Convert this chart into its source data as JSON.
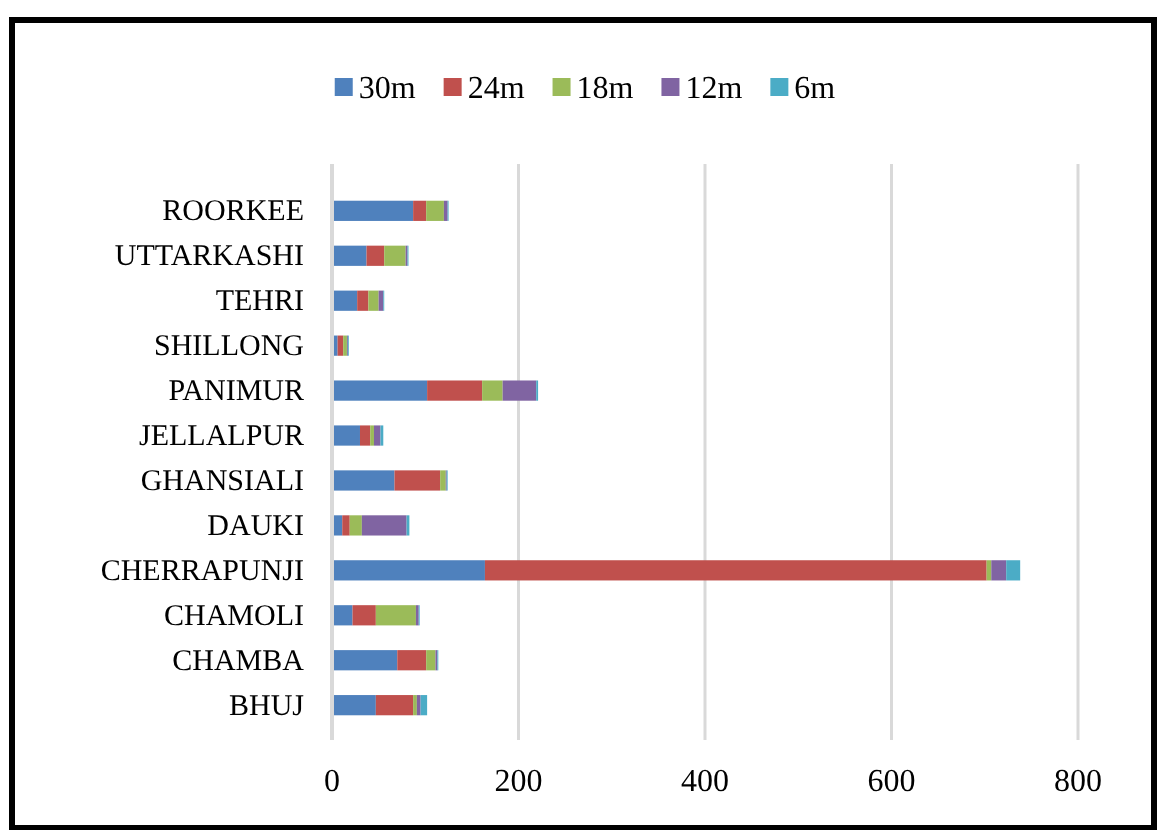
{
  "chart_data": {
    "type": "bar",
    "orientation": "horizontal",
    "stacked": true,
    "categories": [
      "ROORKEE",
      "UTTARKASHI",
      "TEHRI",
      "SHILLONG",
      "PANIMUR",
      "JELLALPUR",
      "GHANSIALI",
      "DAUKI",
      "CHERRAPUNJI",
      "CHAMOLI",
      "CHAMBA",
      "BHUJ"
    ],
    "series": [
      {
        "name": "30m",
        "color": "#4f81bd",
        "values": [
          87,
          37,
          27,
          6,
          102,
          30,
          67,
          11,
          164,
          22,
          70,
          47
        ]
      },
      {
        "name": "24m",
        "color": "#c0504d",
        "values": [
          14,
          19,
          12,
          6,
          59,
          11,
          49,
          8,
          538,
          25,
          31,
          40
        ]
      },
      {
        "name": "18m",
        "color": "#9bbb59",
        "values": [
          19,
          23,
          11,
          4,
          22,
          4,
          6,
          13,
          5,
          43,
          10,
          4
        ]
      },
      {
        "name": "12m",
        "color": "#8064a2",
        "values": [
          4,
          2,
          5,
          1,
          36,
          7,
          1,
          48,
          16,
          3,
          2,
          4
        ]
      },
      {
        "name": "6m",
        "color": "#4bacc6",
        "values": [
          1,
          1,
          1,
          1,
          2,
          3,
          1,
          3,
          15,
          1,
          1,
          7
        ]
      }
    ],
    "xlim": [
      0,
      800
    ],
    "xticks": [
      0,
      200,
      400,
      600,
      800
    ],
    "grid": "x",
    "legend": "top"
  }
}
